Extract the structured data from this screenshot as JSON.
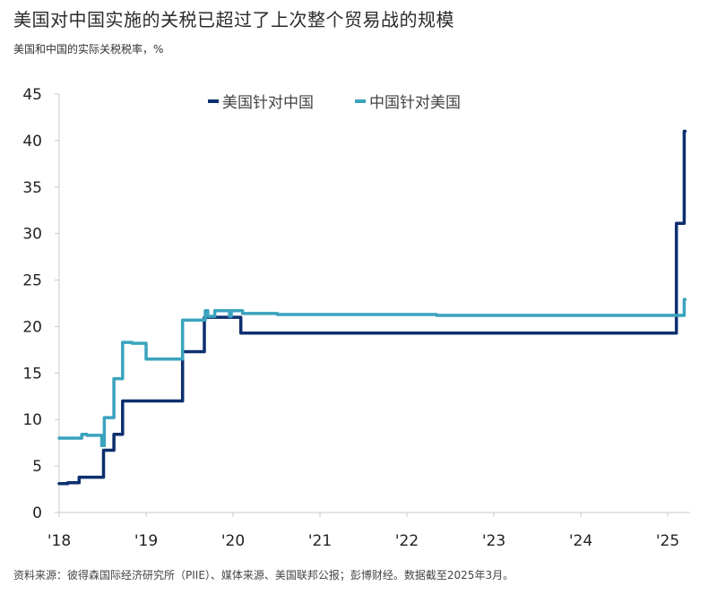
{
  "header": {
    "title": "美国对中国实施的关税已超过了上次整个贸易战的规模",
    "subtitle": "美国和中国的实际关税税率，%"
  },
  "legend": [
    {
      "label": "美国针对中国",
      "color": "#0c2f6e"
    },
    {
      "label": "中国针对美国",
      "color": "#3aa3be"
    }
  ],
  "footer": {
    "source": "资料来源：彼得森国际经济研究所（PIIE）、媒体来源、美国联邦公报；彭博财经。数据截至2025年3月。"
  },
  "chart_data": {
    "type": "line",
    "step": true,
    "title": "美国对中国实施的关税已超过了上次整个贸易战的规模",
    "subtitle": "美国和中国的实际关税税率，%",
    "xlabel": "",
    "ylabel": "%",
    "x_tick_labels": [
      "'18",
      "'19",
      "'20",
      "'21",
      "'22",
      "'23",
      "'24",
      "'25"
    ],
    "x_ticks": [
      2018,
      2019,
      2020,
      2021,
      2022,
      2023,
      2024,
      2025
    ],
    "xlim": [
      2018,
      2025.3
    ],
    "y_ticks": [
      0,
      5,
      10,
      15,
      20,
      25,
      30,
      35,
      40,
      45
    ],
    "ylim": [
      0,
      45
    ],
    "grid": false,
    "legend_position": "top-center",
    "series": [
      {
        "name": "美国针对中国",
        "color": "#0c2f6e",
        "points": [
          [
            2018.0,
            3.1
          ],
          [
            2018.1,
            3.2
          ],
          [
            2018.23,
            3.8
          ],
          [
            2018.51,
            6.7
          ],
          [
            2018.63,
            8.4
          ],
          [
            2018.73,
            12.0
          ],
          [
            2019.42,
            17.3
          ],
          [
            2019.67,
            21.0
          ],
          [
            2020.09,
            19.3
          ],
          [
            2025.1,
            31.1
          ],
          [
            2025.19,
            41.0
          ],
          [
            2025.2,
            41.0
          ]
        ]
      },
      {
        "name": "中国针对美国",
        "color": "#3aa3be",
        "points": [
          [
            2018.0,
            8.0
          ],
          [
            2018.26,
            8.4
          ],
          [
            2018.32,
            8.3
          ],
          [
            2018.49,
            7.2
          ],
          [
            2018.52,
            10.2
          ],
          [
            2018.63,
            14.4
          ],
          [
            2018.73,
            18.3
          ],
          [
            2018.84,
            18.2
          ],
          [
            2019.0,
            16.5
          ],
          [
            2019.42,
            20.7
          ],
          [
            2019.68,
            21.7
          ],
          [
            2019.71,
            21.1
          ],
          [
            2019.79,
            21.7
          ],
          [
            2019.96,
            21.1
          ],
          [
            2019.98,
            21.7
          ],
          [
            2020.11,
            21.4
          ],
          [
            2020.51,
            21.3
          ],
          [
            2022.34,
            21.2
          ],
          [
            2025.19,
            22.9
          ],
          [
            2025.2,
            22.9
          ]
        ]
      }
    ]
  }
}
